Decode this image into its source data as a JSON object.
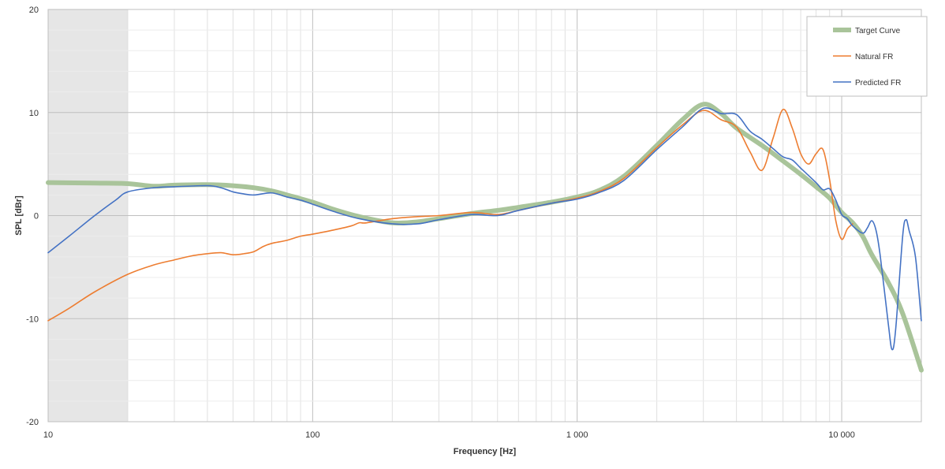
{
  "chart_data": {
    "type": "line",
    "xlabel": "Frequency [Hz]",
    "ylabel": "SPL [dBr]",
    "x_scale": "log",
    "xlim": [
      10,
      20000
    ],
    "ylim": [
      -20,
      20
    ],
    "x_ticks": [
      {
        "value": 10,
        "label": "10"
      },
      {
        "value": 100,
        "label": "100"
      },
      {
        "value": 1000,
        "label": "1 000"
      },
      {
        "value": 10000,
        "label": "10 000"
      }
    ],
    "y_ticks": [
      {
        "value": -20,
        "label": "-20"
      },
      {
        "value": -10,
        "label": "-10"
      },
      {
        "value": 0,
        "label": "0"
      },
      {
        "value": 10,
        "label": "10"
      },
      {
        "value": 20,
        "label": "20"
      }
    ],
    "shaded_region": {
      "x": [
        10,
        20
      ],
      "color": "#e6e6e6"
    },
    "grid": true,
    "legend_position": "top-right",
    "series": [
      {
        "name": "Target Curve",
        "color": "#a9c49a",
        "points": [
          [
            10,
            3.2
          ],
          [
            15,
            3.15
          ],
          [
            20,
            3.1
          ],
          [
            25,
            2.85
          ],
          [
            30,
            2.95
          ],
          [
            40,
            3.0
          ],
          [
            50,
            2.9
          ],
          [
            60,
            2.7
          ],
          [
            70,
            2.4
          ],
          [
            80,
            2.0
          ],
          [
            100,
            1.3
          ],
          [
            120,
            0.6
          ],
          [
            150,
            -0.1
          ],
          [
            200,
            -0.7
          ],
          [
            250,
            -0.6
          ],
          [
            300,
            -0.3
          ],
          [
            400,
            0.2
          ],
          [
            500,
            0.5
          ],
          [
            600,
            0.8
          ],
          [
            800,
            1.3
          ],
          [
            1000,
            1.8
          ],
          [
            1200,
            2.4
          ],
          [
            1500,
            3.8
          ],
          [
            2000,
            6.8
          ],
          [
            2500,
            9.3
          ],
          [
            3000,
            10.8
          ],
          [
            3500,
            9.9
          ],
          [
            4000,
            8.5
          ],
          [
            5000,
            6.8
          ],
          [
            6000,
            5.3
          ],
          [
            7000,
            4.0
          ],
          [
            8000,
            2.8
          ],
          [
            9000,
            1.7
          ],
          [
            10000,
            0.3
          ],
          [
            11000,
            -0.7
          ],
          [
            12000,
            -2.0
          ],
          [
            13000,
            -3.8
          ],
          [
            15000,
            -6.5
          ],
          [
            17000,
            -9.5
          ],
          [
            20000,
            -15.0
          ]
        ]
      },
      {
        "name": "Natural FR",
        "color": "#ed7d31",
        "points": [
          [
            10,
            -10.2
          ],
          [
            12,
            -9.0
          ],
          [
            15,
            -7.4
          ],
          [
            20,
            -5.7
          ],
          [
            25,
            -4.8
          ],
          [
            30,
            -4.3
          ],
          [
            35,
            -3.9
          ],
          [
            40,
            -3.7
          ],
          [
            45,
            -3.6
          ],
          [
            50,
            -3.8
          ],
          [
            55,
            -3.7
          ],
          [
            60,
            -3.5
          ],
          [
            65,
            -3.0
          ],
          [
            70,
            -2.7
          ],
          [
            80,
            -2.4
          ],
          [
            90,
            -2.0
          ],
          [
            100,
            -1.8
          ],
          [
            120,
            -1.4
          ],
          [
            140,
            -1.0
          ],
          [
            150,
            -0.7
          ],
          [
            160,
            -0.7
          ],
          [
            200,
            -0.3
          ],
          [
            250,
            -0.1
          ],
          [
            300,
            0.0
          ],
          [
            400,
            0.3
          ],
          [
            500,
            0.1
          ],
          [
            600,
            0.5
          ],
          [
            800,
            1.2
          ],
          [
            1000,
            1.7
          ],
          [
            1200,
            2.3
          ],
          [
            1500,
            3.6
          ],
          [
            2000,
            6.6
          ],
          [
            2500,
            8.8
          ],
          [
            3000,
            10.2
          ],
          [
            3500,
            9.3
          ],
          [
            4000,
            8.6
          ],
          [
            4500,
            6.2
          ],
          [
            5000,
            4.4
          ],
          [
            5500,
            7.5
          ],
          [
            6000,
            10.3
          ],
          [
            6500,
            8.5
          ],
          [
            7000,
            6.0
          ],
          [
            7500,
            5.0
          ],
          [
            8000,
            6.0
          ],
          [
            8500,
            6.4
          ],
          [
            9000,
            3.5
          ],
          [
            9500,
            -0.5
          ],
          [
            10000,
            -2.3
          ],
          [
            10500,
            -1.3
          ],
          [
            11000,
            -0.8
          ]
        ]
      },
      {
        "name": "Predicted FR",
        "color": "#4472c4",
        "points": [
          [
            10,
            -3.6
          ],
          [
            12,
            -2.0
          ],
          [
            15,
            0.0
          ],
          [
            18,
            1.5
          ],
          [
            20,
            2.3
          ],
          [
            25,
            2.7
          ],
          [
            30,
            2.8
          ],
          [
            40,
            2.9
          ],
          [
            45,
            2.7
          ],
          [
            50,
            2.3
          ],
          [
            55,
            2.1
          ],
          [
            60,
            2.0
          ],
          [
            70,
            2.2
          ],
          [
            80,
            1.8
          ],
          [
            90,
            1.5
          ],
          [
            100,
            1.1
          ],
          [
            120,
            0.4
          ],
          [
            150,
            -0.3
          ],
          [
            200,
            -0.8
          ],
          [
            250,
            -0.8
          ],
          [
            300,
            -0.4
          ],
          [
            400,
            0.1
          ],
          [
            500,
            0.0
          ],
          [
            600,
            0.5
          ],
          [
            800,
            1.2
          ],
          [
            1000,
            1.6
          ],
          [
            1200,
            2.2
          ],
          [
            1500,
            3.4
          ],
          [
            2000,
            6.4
          ],
          [
            2500,
            8.6
          ],
          [
            3000,
            10.4
          ],
          [
            3500,
            9.9
          ],
          [
            4000,
            9.8
          ],
          [
            4500,
            8.2
          ],
          [
            5000,
            7.4
          ],
          [
            5500,
            6.5
          ],
          [
            6000,
            5.7
          ],
          [
            6500,
            5.4
          ],
          [
            7000,
            4.6
          ],
          [
            8000,
            3.2
          ],
          [
            8500,
            2.5
          ],
          [
            9000,
            2.6
          ],
          [
            9500,
            1.5
          ],
          [
            10000,
            0.1
          ],
          [
            10500,
            -0.3
          ],
          [
            11000,
            -1.0
          ],
          [
            12000,
            -1.7
          ],
          [
            12500,
            -1.2
          ],
          [
            13000,
            -0.5
          ],
          [
            13500,
            -1.5
          ],
          [
            14000,
            -4.0
          ],
          [
            15000,
            -10.5
          ],
          [
            15500,
            -13.0
          ],
          [
            16000,
            -11.0
          ],
          [
            17000,
            -2.0
          ],
          [
            17500,
            -0.4
          ],
          [
            18000,
            -1.5
          ],
          [
            19000,
            -4.0
          ],
          [
            20000,
            -10.2
          ]
        ]
      }
    ]
  }
}
